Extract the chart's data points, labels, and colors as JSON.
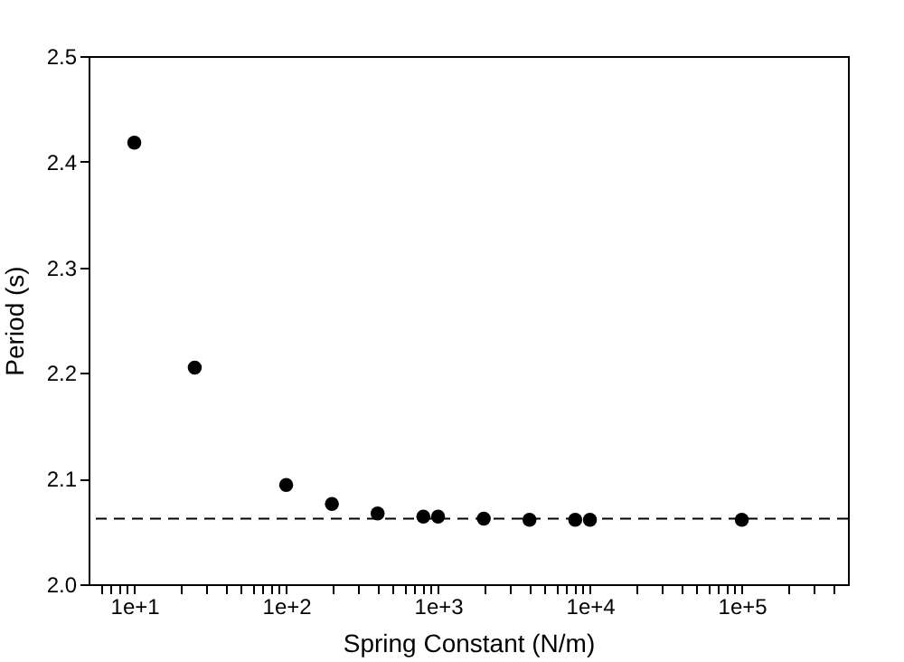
{
  "chart_data": {
    "type": "scatter",
    "xlabel": "Spring Constant (N/m)",
    "ylabel": "Period (s)",
    "x": [
      10,
      25,
      100,
      200,
      400,
      800,
      1000,
      2000,
      4000,
      8000,
      10000,
      100000
    ],
    "series": [
      {
        "color": "#000000",
        "values": [
          2.418,
          2.205,
          2.094,
          2.076,
          2.067,
          2.064,
          2.064,
          2.062,
          2.061,
          2.061,
          2.061,
          2.061
        ]
      }
    ],
    "log": "x",
    "xlim": [
      5,
      500000
    ],
    "ylim": [
      2.0,
      2.5
    ],
    "xticks": [
      {
        "value": 10,
        "label": "1e+1"
      },
      {
        "value": 100,
        "label": "1e+2"
      },
      {
        "value": 1000,
        "label": "1e+3"
      },
      {
        "value": 10000,
        "label": "1e+4"
      },
      {
        "value": 100000,
        "label": "1e+5"
      },
      {
        "value": 6,
        "label": null
      },
      {
        "value": 7,
        "label": null
      },
      {
        "value": 8,
        "label": null
      },
      {
        "value": 9,
        "label": null
      },
      {
        "value": 20,
        "label": null
      },
      {
        "value": 30,
        "label": null
      },
      {
        "value": 40,
        "label": null
      },
      {
        "value": 50,
        "label": null
      },
      {
        "value": 60,
        "label": null
      },
      {
        "value": 70,
        "label": null
      },
      {
        "value": 80,
        "label": null
      },
      {
        "value": 90,
        "label": null
      },
      {
        "value": 200,
        "label": null
      },
      {
        "value": 300,
        "label": null
      },
      {
        "value": 400,
        "label": null
      },
      {
        "value": 500,
        "label": null
      },
      {
        "value": 600,
        "label": null
      },
      {
        "value": 700,
        "label": null
      },
      {
        "value": 800,
        "label": null
      },
      {
        "value": 900,
        "label": null
      },
      {
        "value": 2000,
        "label": null
      },
      {
        "value": 3000,
        "label": null
      },
      {
        "value": 4000,
        "label": null
      },
      {
        "value": 5000,
        "label": null
      },
      {
        "value": 6000,
        "label": null
      },
      {
        "value": 7000,
        "label": null
      },
      {
        "value": 8000,
        "label": null
      },
      {
        "value": 9000,
        "label": null
      },
      {
        "value": 20000,
        "label": null
      },
      {
        "value": 30000,
        "label": null
      },
      {
        "value": 40000,
        "label": null
      },
      {
        "value": 50000,
        "label": null
      },
      {
        "value": 60000,
        "label": null
      },
      {
        "value": 70000,
        "label": null
      },
      {
        "value": 80000,
        "label": null
      },
      {
        "value": 90000,
        "label": null
      },
      {
        "value": 200000,
        "label": null
      },
      {
        "value": 300000,
        "label": null
      },
      {
        "value": 400000,
        "label": null
      }
    ],
    "yticks": [
      {
        "value": 2.0,
        "label": "2.0"
      },
      {
        "value": 2.1,
        "label": "2.1"
      },
      {
        "value": 2.2,
        "label": "2.2"
      },
      {
        "value": 2.3,
        "label": "2.3"
      },
      {
        "value": 2.4,
        "label": "2.4"
      },
      {
        "value": 2.5,
        "label": "2.5"
      }
    ],
    "ref_lines": [
      {
        "axis": "y",
        "value": 2.062,
        "color": "#000000",
        "line_style": "dashed"
      }
    ],
    "marker": "circle",
    "grid": false
  }
}
